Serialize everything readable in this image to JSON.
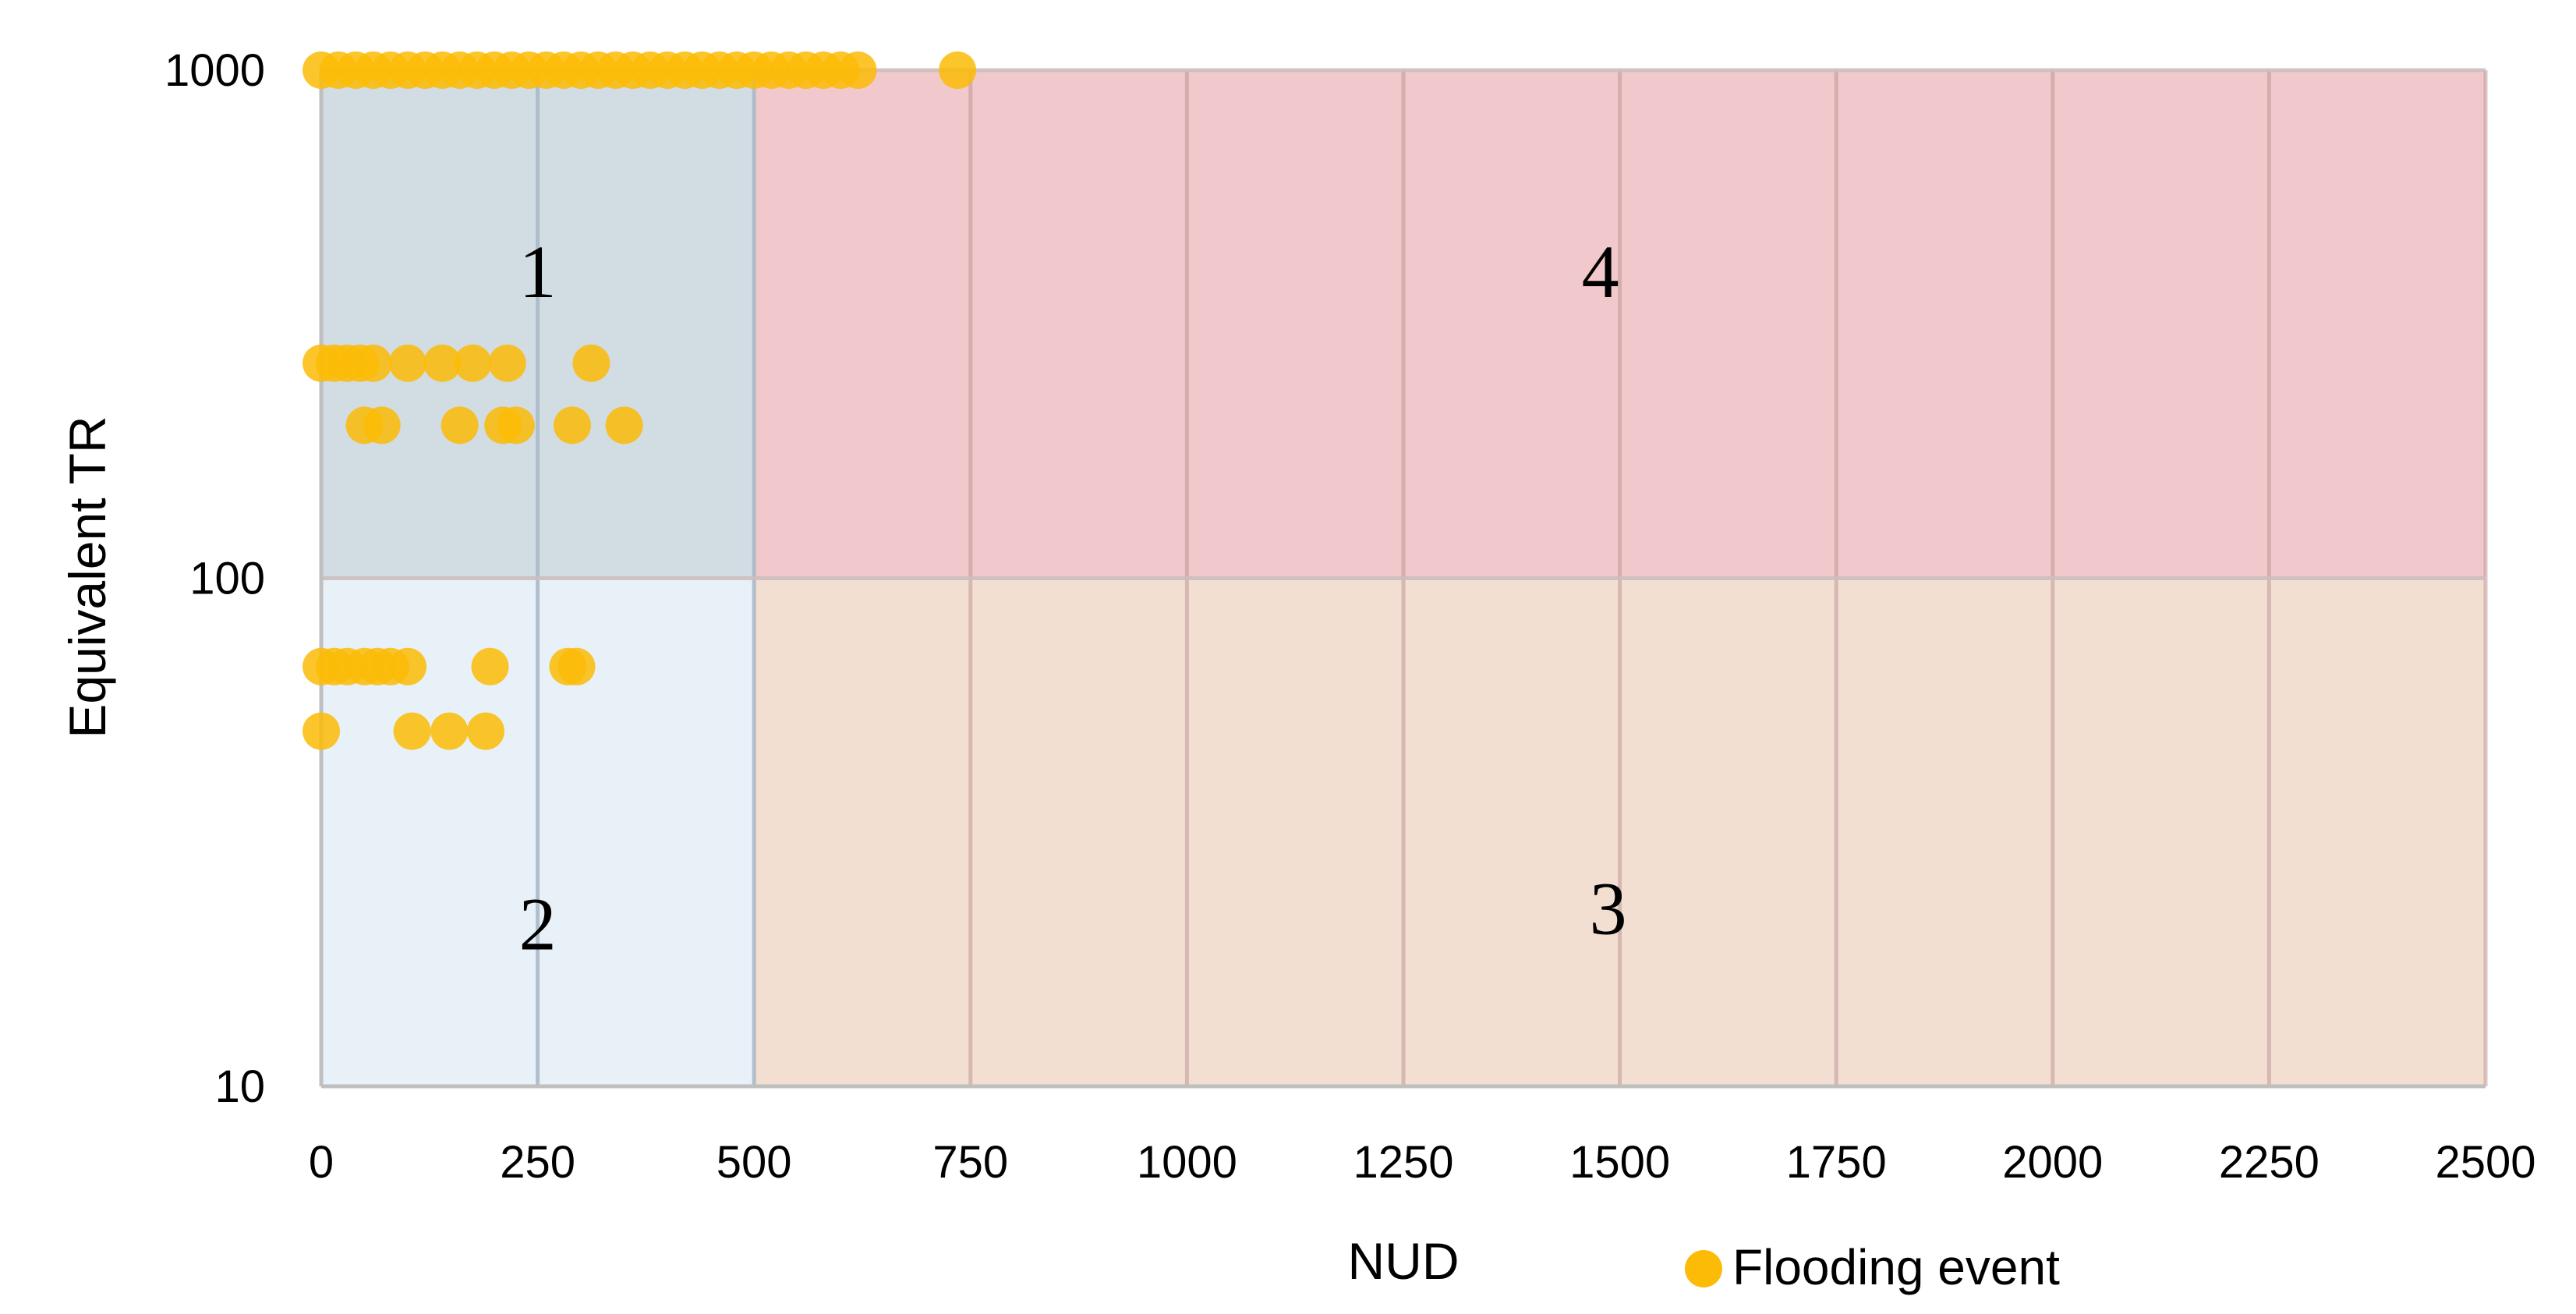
{
  "chart_data": {
    "type": "scatter",
    "xlabel": "NUD",
    "ylabel": "Equivalent TR",
    "xlim": [
      0,
      2500
    ],
    "ylim": [
      10,
      1000
    ],
    "yscale": "log",
    "x_ticks": [
      "0",
      "250",
      "500",
      "750",
      "1000",
      "1250",
      "1500",
      "1750",
      "2000",
      "2250",
      "2500"
    ],
    "y_ticks": [
      "10",
      "100",
      "1000"
    ],
    "grid": true,
    "legend_position": "bottom-right",
    "zones": [
      {
        "label": "1",
        "x": [
          0,
          500
        ],
        "y": [
          100,
          1000
        ],
        "color": "#d2dce3"
      },
      {
        "label": "2",
        "x": [
          0,
          500
        ],
        "y": [
          10,
          100
        ],
        "color": "#e8f0f8"
      },
      {
        "label": "3",
        "x": [
          500,
          2500
        ],
        "y": [
          10,
          100
        ],
        "color": "#f3dfd2"
      },
      {
        "label": "4",
        "x": [
          500,
          2500
        ],
        "y": [
          100,
          1000
        ],
        "color": "#f1c9cc"
      }
    ],
    "series": [
      {
        "name": "Flooding event",
        "color": "#fbbb06",
        "points": [
          [
            0,
            1000
          ],
          [
            20,
            1000
          ],
          [
            40,
            1000
          ],
          [
            60,
            1000
          ],
          [
            80,
            1000
          ],
          [
            100,
            1000
          ],
          [
            120,
            1000
          ],
          [
            140,
            1000
          ],
          [
            160,
            1000
          ],
          [
            180,
            1000
          ],
          [
            200,
            1000
          ],
          [
            220,
            1000
          ],
          [
            240,
            1000
          ],
          [
            260,
            1000
          ],
          [
            280,
            1000
          ],
          [
            300,
            1000
          ],
          [
            320,
            1000
          ],
          [
            340,
            1000
          ],
          [
            360,
            1000
          ],
          [
            380,
            1000
          ],
          [
            400,
            1000
          ],
          [
            420,
            1000
          ],
          [
            440,
            1000
          ],
          [
            460,
            1000
          ],
          [
            480,
            1000
          ],
          [
            500,
            1000
          ],
          [
            520,
            1000
          ],
          [
            540,
            1000
          ],
          [
            560,
            1000
          ],
          [
            580,
            1000
          ],
          [
            600,
            1000
          ],
          [
            620,
            1000
          ],
          [
            735,
            1000
          ],
          [
            0,
            265
          ],
          [
            15,
            265
          ],
          [
            30,
            265
          ],
          [
            45,
            265
          ],
          [
            60,
            265
          ],
          [
            100,
            265
          ],
          [
            140,
            265
          ],
          [
            175,
            265
          ],
          [
            215,
            265
          ],
          [
            312,
            265
          ],
          [
            50,
            200
          ],
          [
            70,
            200
          ],
          [
            160,
            200
          ],
          [
            210,
            200
          ],
          [
            225,
            200
          ],
          [
            290,
            200
          ],
          [
            350,
            200
          ],
          [
            0,
            67
          ],
          [
            15,
            67
          ],
          [
            30,
            67
          ],
          [
            50,
            67
          ],
          [
            65,
            67
          ],
          [
            80,
            67
          ],
          [
            100,
            67
          ],
          [
            195,
            67
          ],
          [
            285,
            67
          ],
          [
            295,
            67
          ],
          [
            0,
            50
          ],
          [
            105,
            50
          ],
          [
            148,
            50
          ],
          [
            190,
            50
          ]
        ]
      }
    ]
  }
}
